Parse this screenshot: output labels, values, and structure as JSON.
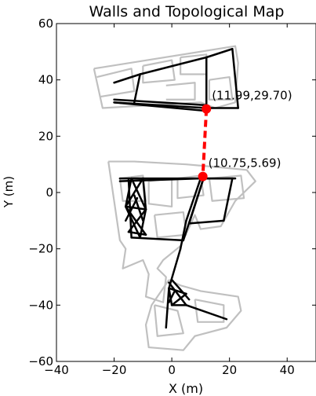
{
  "chart_data": {
    "type": "line",
    "title": "Walls and Topological Map",
    "xlabel": "X (m)",
    "ylabel": "Y (m)",
    "xlim": [
      -40,
      50
    ],
    "ylim": [
      -60,
      60
    ],
    "xticks": [
      -40,
      -20,
      0,
      20,
      40
    ],
    "yticks": [
      60,
      40,
      20,
      0,
      -20,
      -40,
      -60
    ],
    "xtick_labels": [
      "−40",
      "−20",
      "0",
      "20",
      "40"
    ],
    "ytick_labels": [
      "60",
      "40",
      "20",
      "0",
      "−20",
      "−40",
      "−60"
    ],
    "grid": false,
    "colors": {
      "walls": "#c0c0c0",
      "topology": "#000000",
      "link": "#ff0000",
      "node": "#ff0000"
    },
    "walls": [
      {
        "points": [
          [
            -27,
            44
          ],
          [
            22,
            52
          ],
          [
            23,
            46
          ],
          [
            22,
            32
          ],
          [
            15,
            30
          ],
          [
            10,
            32
          ],
          [
            -24,
            30
          ],
          [
            -27,
            44
          ]
        ]
      },
      {
        "points": [
          [
            -26,
            41
          ],
          [
            -14,
            44
          ],
          [
            -13,
            36
          ],
          [
            -25,
            34
          ]
        ]
      },
      {
        "points": [
          [
            -10,
            45
          ],
          [
            0,
            47
          ],
          [
            1,
            40
          ],
          [
            -10,
            39
          ],
          [
            -10,
            45
          ]
        ]
      },
      {
        "points": [
          [
            3,
            48
          ],
          [
            12,
            49
          ],
          [
            12,
            42
          ],
          [
            3,
            42
          ],
          [
            3,
            48
          ]
        ]
      },
      {
        "points": [
          [
            13,
            40
          ],
          [
            20,
            41
          ],
          [
            21,
            33
          ],
          [
            13,
            33
          ],
          [
            13,
            40
          ]
        ]
      },
      {
        "points": [
          [
            -2,
            38
          ],
          [
            8,
            39
          ],
          [
            8,
            33
          ],
          [
            -2,
            33
          ]
        ]
      },
      {
        "points": [
          [
            -22,
            11
          ],
          [
            -21,
            4
          ],
          [
            -18,
            -17
          ],
          [
            -16,
            -20
          ],
          [
            -17,
            -27
          ],
          [
            -10,
            -24
          ],
          [
            -8,
            -29
          ],
          [
            -9,
            -37
          ],
          [
            -3,
            -39
          ],
          [
            -2,
            -30
          ],
          [
            -5,
            -27
          ],
          [
            -3,
            -24
          ],
          [
            3,
            -19
          ],
          [
            8,
            -8
          ],
          [
            10,
            -13
          ],
          [
            17,
            -12
          ],
          [
            22,
            -3
          ],
          [
            29,
            4
          ],
          [
            26,
            8
          ],
          [
            16,
            9
          ],
          [
            5,
            10
          ],
          [
            -13,
            11
          ],
          [
            -22,
            11
          ]
        ]
      },
      {
        "points": [
          [
            -18,
            5
          ],
          [
            -10,
            6
          ],
          [
            -9,
            -3
          ],
          [
            -17,
            -3
          ],
          [
            -18,
            5
          ]
        ]
      },
      {
        "points": [
          [
            -8,
            4
          ],
          [
            0,
            5
          ],
          [
            0,
            -5
          ],
          [
            -8,
            -4
          ],
          [
            -8,
            4
          ]
        ]
      },
      {
        "points": [
          [
            2,
            5
          ],
          [
            10,
            6
          ],
          [
            11,
            -1
          ],
          [
            2,
            -2
          ],
          [
            2,
            5
          ]
        ]
      },
      {
        "points": [
          [
            13,
            5
          ],
          [
            24,
            6
          ],
          [
            25,
            -2
          ],
          [
            14,
            -3
          ],
          [
            13,
            5
          ]
        ]
      },
      {
        "points": [
          [
            -6,
            -8
          ],
          [
            4,
            -7
          ],
          [
            5,
            -15
          ],
          [
            -5,
            -16
          ],
          [
            -6,
            -8
          ]
        ]
      },
      {
        "points": [
          [
            -1,
            -31
          ],
          [
            3,
            -33
          ],
          [
            10,
            -35
          ],
          [
            23,
            -37
          ],
          [
            24,
            -42
          ],
          [
            19,
            -48
          ],
          [
            8,
            -51
          ],
          [
            4,
            -56
          ],
          [
            -8,
            -55
          ],
          [
            -9,
            -47
          ],
          [
            -7,
            -40
          ],
          [
            -1,
            -31
          ]
        ]
      },
      {
        "points": [
          [
            -6,
            -40
          ],
          [
            2,
            -42
          ],
          [
            4,
            -50
          ],
          [
            -5,
            -51
          ],
          [
            -6,
            -40
          ]
        ]
      },
      {
        "points": [
          [
            8,
            -38
          ],
          [
            18,
            -40
          ],
          [
            18,
            -46
          ],
          [
            9,
            -46
          ],
          [
            8,
            -38
          ]
        ]
      }
    ],
    "topology_edges": [
      [
        [
          -20,
          39
        ],
        [
          -11,
          42
        ]
      ],
      [
        [
          -11,
          42
        ],
        [
          -13,
          32
        ]
      ],
      [
        [
          -11,
          42
        ],
        [
          12,
          48
        ]
      ],
      [
        [
          12,
          48
        ],
        [
          21,
          51
        ]
      ],
      [
        [
          21,
          51
        ],
        [
          23,
          30
        ]
      ],
      [
        [
          23,
          30
        ],
        [
          12,
          30
        ]
      ],
      [
        [
          12,
          48
        ],
        [
          12,
          30
        ]
      ],
      [
        [
          -20,
          32
        ],
        [
          12,
          30
        ]
      ],
      [
        [
          -20,
          33
        ],
        [
          12,
          31
        ]
      ],
      [
        [
          -20,
          32
        ],
        [
          12,
          29
        ]
      ],
      [
        [
          -18,
          5
        ],
        [
          22,
          5
        ]
      ],
      [
        [
          -18,
          4
        ],
        [
          10,
          5
        ]
      ],
      [
        [
          10,
          5
        ],
        [
          21,
          5
        ]
      ],
      [
        [
          21,
          5
        ],
        [
          18,
          -10
        ]
      ],
      [
        [
          18,
          -10
        ],
        [
          6,
          -11
        ]
      ],
      [
        [
          6,
          -11
        ],
        [
          11,
          5
        ]
      ],
      [
        [
          11,
          5
        ],
        [
          4,
          -17
        ]
      ],
      [
        [
          4,
          -17
        ],
        [
          -14,
          -16
        ]
      ],
      [
        [
          -14,
          -16
        ],
        [
          -15,
          5
        ]
      ],
      [
        [
          10,
          5
        ],
        [
          5,
          -10
        ]
      ],
      [
        [
          5,
          -10
        ],
        [
          3,
          -20
        ]
      ],
      [
        [
          -14,
          5
        ],
        [
          -10,
          5
        ]
      ],
      [
        [
          -14,
          5
        ],
        [
          -16,
          -5
        ]
      ],
      [
        [
          -10,
          5
        ],
        [
          -9,
          -6
        ]
      ],
      [
        [
          -16,
          -5
        ],
        [
          -9,
          -6
        ]
      ],
      [
        [
          -16,
          -5
        ],
        [
          -11,
          -16
        ]
      ],
      [
        [
          -9,
          -6
        ],
        [
          -15,
          -14
        ]
      ],
      [
        [
          -15,
          -14
        ],
        [
          -9,
          -15
        ]
      ],
      [
        [
          -14,
          5
        ],
        [
          -9,
          -6
        ]
      ],
      [
        [
          -10,
          5
        ],
        [
          -16,
          -5
        ]
      ],
      [
        [
          -16,
          -5
        ],
        [
          -9,
          -15
        ]
      ],
      [
        [
          -9,
          -6
        ],
        [
          -11,
          -16
        ]
      ],
      [
        [
          -13,
          -1
        ],
        [
          -10,
          -10
        ]
      ],
      [
        [
          -12,
          -2
        ],
        [
          -16,
          -10
        ]
      ],
      [
        [
          3,
          -20
        ],
        [
          -1,
          -34
        ]
      ],
      [
        [
          -1,
          -34
        ],
        [
          -2,
          -48
        ]
      ],
      [
        [
          -1,
          -32
        ],
        [
          5,
          -40
        ]
      ],
      [
        [
          5,
          -40
        ],
        [
          19,
          -45
        ]
      ],
      [
        [
          -1,
          -34
        ],
        [
          5,
          -36
        ]
      ],
      [
        [
          5,
          -36
        ],
        [
          0,
          -40
        ]
      ],
      [
        [
          0,
          -40
        ],
        [
          5,
          -40
        ]
      ],
      [
        [
          -1,
          -34
        ],
        [
          0,
          -40
        ]
      ],
      [
        [
          0,
          -31
        ],
        [
          6,
          -38
        ]
      ],
      [
        [
          1,
          -35
        ],
        [
          -1,
          -39
        ]
      ]
    ],
    "link": {
      "from": [
        11.99,
        29.7
      ],
      "to": [
        10.75,
        5.69
      ]
    },
    "nodes": [
      {
        "x": 11.99,
        "y": 29.7,
        "label": "(11.99,29.70)"
      },
      {
        "x": 10.75,
        "y": 5.69,
        "label": "(10.75,5.69)"
      }
    ]
  }
}
